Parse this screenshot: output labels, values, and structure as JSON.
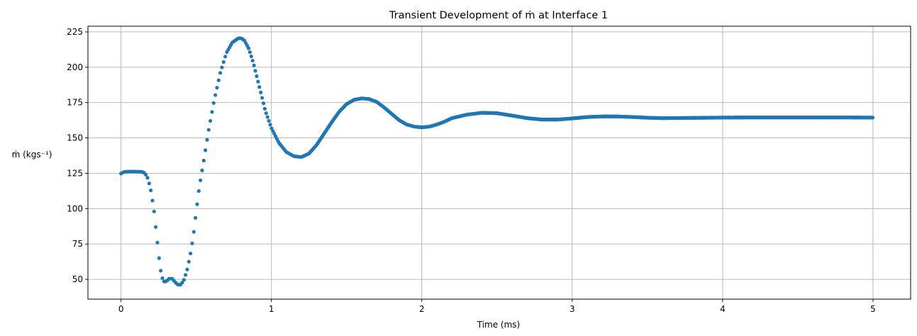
{
  "chart_data": {
    "type": "scatter",
    "title": "Transient Development of ṁ at Interface 1",
    "xlabel": "Time (ms)",
    "ylabel": "ṁ (kgs⁻¹)",
    "xlim": [
      -0.22,
      5.25
    ],
    "ylim": [
      36,
      229
    ],
    "xticks": [
      0,
      1,
      2,
      3,
      4,
      5
    ],
    "xtick_labels": [
      "0",
      "1",
      "2",
      "3",
      "4",
      "5"
    ],
    "yticks": [
      50,
      75,
      100,
      125,
      150,
      175,
      200,
      225
    ],
    "ytick_labels": [
      "50",
      "75",
      "100",
      "125",
      "150",
      "175",
      "200",
      "225"
    ],
    "grid": true,
    "marker_color": "#1f77b4",
    "series": [
      {
        "points": [
          [
            0.0,
            124.8
          ],
          [
            0.02,
            126.0
          ],
          [
            0.05,
            126.2
          ],
          [
            0.1,
            126.2
          ],
          [
            0.14,
            126.0
          ],
          [
            0.16,
            125.0
          ],
          [
            0.18,
            121.0
          ],
          [
            0.2,
            112.0
          ],
          [
            0.22,
            98.0
          ],
          [
            0.24,
            78.0
          ],
          [
            0.26,
            58.0
          ],
          [
            0.28,
            48.5
          ],
          [
            0.3,
            48.5
          ],
          [
            0.32,
            50.5
          ],
          [
            0.34,
            50.5
          ],
          [
            0.36,
            48.0
          ],
          [
            0.38,
            46.0
          ],
          [
            0.4,
            46.5
          ],
          [
            0.42,
            50.0
          ],
          [
            0.44,
            57.0
          ],
          [
            0.46,
            67.0
          ],
          [
            0.48,
            80.0
          ],
          [
            0.5,
            98.0
          ],
          [
            0.52,
            115.0
          ],
          [
            0.55,
            134.0
          ],
          [
            0.58,
            154.0
          ],
          [
            0.62,
            177.0
          ],
          [
            0.66,
            196.0
          ],
          [
            0.7,
            210.0
          ],
          [
            0.74,
            217.5
          ],
          [
            0.78,
            220.5
          ],
          [
            0.8,
            220.5
          ],
          [
            0.82,
            219.0
          ],
          [
            0.85,
            213.0
          ],
          [
            0.88,
            203.0
          ],
          [
            0.92,
            186.0
          ],
          [
            0.96,
            169.0
          ],
          [
            1.0,
            157.0
          ],
          [
            1.05,
            146.5
          ],
          [
            1.1,
            140.0
          ],
          [
            1.15,
            137.0
          ],
          [
            1.2,
            136.5
          ],
          [
            1.25,
            139.0
          ],
          [
            1.3,
            145.0
          ],
          [
            1.35,
            153.0
          ],
          [
            1.4,
            161.0
          ],
          [
            1.45,
            168.5
          ],
          [
            1.5,
            174.0
          ],
          [
            1.55,
            177.0
          ],
          [
            1.6,
            178.0
          ],
          [
            1.65,
            177.5
          ],
          [
            1.7,
            175.5
          ],
          [
            1.75,
            171.5
          ],
          [
            1.8,
            167.0
          ],
          [
            1.85,
            162.5
          ],
          [
            1.9,
            159.5
          ],
          [
            1.95,
            158.0
          ],
          [
            2.0,
            157.5
          ],
          [
            2.05,
            158.0
          ],
          [
            2.1,
            159.5
          ],
          [
            2.15,
            161.5
          ],
          [
            2.2,
            164.0
          ],
          [
            2.3,
            166.5
          ],
          [
            2.4,
            167.8
          ],
          [
            2.5,
            167.5
          ],
          [
            2.6,
            165.8
          ],
          [
            2.7,
            164.0
          ],
          [
            2.8,
            163.0
          ],
          [
            2.9,
            163.0
          ],
          [
            3.0,
            163.8
          ],
          [
            3.1,
            164.8
          ],
          [
            3.2,
            165.2
          ],
          [
            3.3,
            165.2
          ],
          [
            3.4,
            164.8
          ],
          [
            3.5,
            164.3
          ],
          [
            3.6,
            164.0
          ],
          [
            3.8,
            164.2
          ],
          [
            4.0,
            164.4
          ],
          [
            4.2,
            164.5
          ],
          [
            4.5,
            164.5
          ],
          [
            4.8,
            164.5
          ],
          [
            5.0,
            164.4
          ]
        ]
      }
    ]
  }
}
